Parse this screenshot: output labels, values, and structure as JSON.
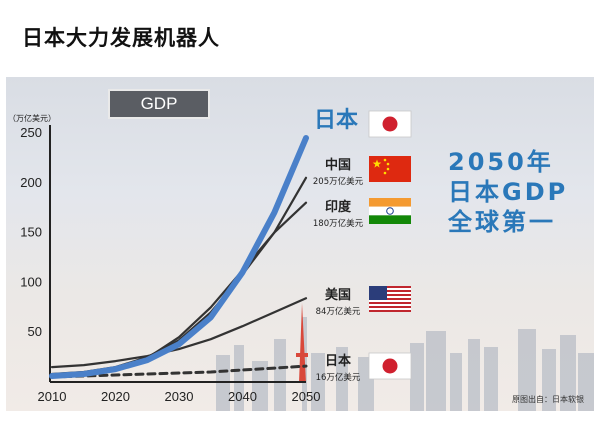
{
  "page": {
    "title": "日本大力发展机器人"
  },
  "chart": {
    "badge": "GDP"
  },
  "headline": {
    "line1": "2050年",
    "line2": "日本GDP",
    "line3": "全球第一"
  },
  "source": "原图出自：日本软银",
  "flags": {
    "japan": "flag-japan-icon",
    "china": "flag-china-icon",
    "india": "flag-india-icon",
    "usa": "flag-usa-icon"
  },
  "colors": {
    "accent": "#2a78b9",
    "projection_line": "#4a80c9",
    "other_lines": "#333333"
  },
  "chart_data": {
    "type": "line",
    "ylabel": "（万亿美元）",
    "xlabel": "",
    "x": [
      2010,
      2015,
      2020,
      2025,
      2030,
      2035,
      2040,
      2045,
      2050
    ],
    "x_ticks": [
      "2010",
      "2020",
      "2030",
      "2040",
      "2050"
    ],
    "y_ticks": [
      "50",
      "100",
      "150",
      "200",
      "250"
    ],
    "xlim": [
      2010,
      2050
    ],
    "ylim": [
      0,
      250
    ],
    "grid": false,
    "series": [
      {
        "name": "日本",
        "label": "日本",
        "sublabel": "",
        "style": "thick-blue",
        "values": [
          6,
          8,
          13,
          22,
          38,
          65,
          110,
          170,
          245
        ]
      },
      {
        "name": "中国",
        "label": "中国",
        "sublabel": "205万亿美元",
        "style": "solid",
        "values": [
          8,
          10,
          15,
          25,
          42,
          70,
          108,
          150,
          205
        ]
      },
      {
        "name": "印度",
        "label": "印度",
        "sublabel": "180万亿美元",
        "style": "solid",
        "values": [
          5,
          7,
          12,
          24,
          45,
          75,
          112,
          150,
          180
        ]
      },
      {
        "name": "美国",
        "label": "美国",
        "sublabel": "84万亿美元",
        "style": "solid",
        "values": [
          15,
          17,
          21,
          26,
          33,
          43,
          56,
          70,
          84
        ]
      },
      {
        "name": "日本",
        "label": "日本",
        "sublabel": "16万亿美元",
        "style": "dashed",
        "values": [
          5,
          6,
          7,
          8,
          9,
          10,
          12,
          14,
          16
        ]
      }
    ]
  }
}
